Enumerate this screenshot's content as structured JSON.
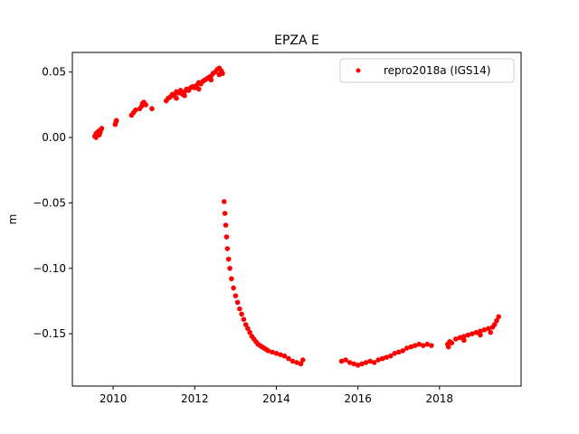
{
  "chart_data": {
    "type": "scatter",
    "title": "EPZA E",
    "xlabel": "",
    "ylabel": "m",
    "xlim": [
      2009.0,
      2020.0
    ],
    "ylim": [
      -0.19,
      0.065
    ],
    "xticks": [
      2010,
      2012,
      2014,
      2016,
      2018
    ],
    "xtick_labels": [
      "2010",
      "2012",
      "2014",
      "2016",
      "2018"
    ],
    "yticks": [
      -0.15,
      -0.1,
      -0.05,
      0.0,
      0.05
    ],
    "ytick_labels": [
      "−0.15",
      "−0.10",
      "−0.05",
      "0.00",
      "0.05"
    ],
    "grid": false,
    "legend": {
      "position": "top-right",
      "entries": [
        "repro2018a (IGS14)"
      ]
    },
    "series": [
      {
        "name": "repro2018a (IGS14)",
        "color": "#ff0000",
        "marker": "circle",
        "points": [
          [
            2009.55,
            0.001
          ],
          [
            2009.58,
            0.003
          ],
          [
            2009.6,
            0.002
          ],
          [
            2009.62,
            0.004
          ],
          [
            2009.65,
            0.005
          ],
          [
            2009.68,
            0.004
          ],
          [
            2009.7,
            0.006
          ],
          [
            2009.72,
            0.007
          ],
          [
            2009.58,
            0.0
          ],
          [
            2009.66,
            0.002
          ],
          [
            2010.05,
            0.01
          ],
          [
            2010.07,
            0.012
          ],
          [
            2010.08,
            0.013
          ],
          [
            2010.45,
            0.017
          ],
          [
            2010.5,
            0.019
          ],
          [
            2010.55,
            0.021
          ],
          [
            2010.65,
            0.022
          ],
          [
            2010.7,
            0.024
          ],
          [
            2010.72,
            0.026
          ],
          [
            2010.75,
            0.027
          ],
          [
            2010.8,
            0.025
          ],
          [
            2010.95,
            0.022
          ],
          [
            2011.3,
            0.028
          ],
          [
            2011.35,
            0.03
          ],
          [
            2011.4,
            0.031
          ],
          [
            2011.45,
            0.033
          ],
          [
            2011.5,
            0.032
          ],
          [
            2011.55,
            0.035
          ],
          [
            2011.6,
            0.034
          ],
          [
            2011.65,
            0.036
          ],
          [
            2011.7,
            0.033
          ],
          [
            2011.75,
            0.035
          ],
          [
            2011.8,
            0.037
          ],
          [
            2011.85,
            0.036
          ],
          [
            2011.9,
            0.038
          ],
          [
            2011.95,
            0.039
          ],
          [
            2012.0,
            0.038
          ],
          [
            2012.05,
            0.04
          ],
          [
            2012.1,
            0.042
          ],
          [
            2012.15,
            0.041
          ],
          [
            2012.2,
            0.043
          ],
          [
            2012.25,
            0.044
          ],
          [
            2012.3,
            0.045
          ],
          [
            2012.35,
            0.046
          ],
          [
            2012.4,
            0.047
          ],
          [
            2012.45,
            0.049
          ],
          [
            2012.5,
            0.05
          ],
          [
            2012.55,
            0.052
          ],
          [
            2012.6,
            0.053
          ],
          [
            2012.65,
            0.051
          ],
          [
            2012.68,
            0.049
          ],
          [
            2011.55,
            0.03
          ],
          [
            2011.75,
            0.032
          ],
          [
            2012.1,
            0.037
          ],
          [
            2012.4,
            0.044
          ],
          [
            2012.6,
            0.048
          ],
          [
            2012.72,
            -0.049
          ],
          [
            2012.74,
            -0.058
          ],
          [
            2012.76,
            -0.067
          ],
          [
            2012.78,
            -0.076
          ],
          [
            2012.8,
            -0.085
          ],
          [
            2012.83,
            -0.093
          ],
          [
            2012.86,
            -0.1
          ],
          [
            2012.9,
            -0.108
          ],
          [
            2012.95,
            -0.115
          ],
          [
            2013.0,
            -0.121
          ],
          [
            2013.05,
            -0.126
          ],
          [
            2013.1,
            -0.131
          ],
          [
            2013.15,
            -0.135
          ],
          [
            2013.2,
            -0.139
          ],
          [
            2013.25,
            -0.143
          ],
          [
            2013.3,
            -0.146
          ],
          [
            2013.35,
            -0.149
          ],
          [
            2013.4,
            -0.152
          ],
          [
            2013.45,
            -0.154
          ],
          [
            2013.5,
            -0.156
          ],
          [
            2013.55,
            -0.158
          ],
          [
            2013.6,
            -0.159
          ],
          [
            2013.65,
            -0.16
          ],
          [
            2013.7,
            -0.161
          ],
          [
            2013.75,
            -0.162
          ],
          [
            2013.8,
            -0.163
          ],
          [
            2013.9,
            -0.164
          ],
          [
            2014.0,
            -0.165
          ],
          [
            2014.1,
            -0.166
          ],
          [
            2014.2,
            -0.167
          ],
          [
            2014.3,
            -0.169
          ],
          [
            2014.4,
            -0.171
          ],
          [
            2014.5,
            -0.172
          ],
          [
            2014.6,
            -0.173
          ],
          [
            2014.65,
            -0.17
          ],
          [
            2015.6,
            -0.171
          ],
          [
            2015.7,
            -0.17
          ],
          [
            2015.8,
            -0.172
          ],
          [
            2015.9,
            -0.173
          ],
          [
            2016.0,
            -0.174
          ],
          [
            2016.1,
            -0.173
          ],
          [
            2016.2,
            -0.172
          ],
          [
            2016.3,
            -0.171
          ],
          [
            2016.4,
            -0.172
          ],
          [
            2016.5,
            -0.17
          ],
          [
            2016.6,
            -0.169
          ],
          [
            2016.7,
            -0.168
          ],
          [
            2016.8,
            -0.167
          ],
          [
            2016.9,
            -0.165
          ],
          [
            2017.0,
            -0.164
          ],
          [
            2017.1,
            -0.163
          ],
          [
            2017.2,
            -0.161
          ],
          [
            2017.3,
            -0.16
          ],
          [
            2017.4,
            -0.159
          ],
          [
            2017.5,
            -0.158
          ],
          [
            2017.6,
            -0.159
          ],
          [
            2017.7,
            -0.158
          ],
          [
            2017.8,
            -0.159
          ],
          [
            2018.2,
            -0.158
          ],
          [
            2018.25,
            -0.156
          ],
          [
            2018.3,
            -0.157
          ],
          [
            2018.4,
            -0.154
          ],
          [
            2018.5,
            -0.153
          ],
          [
            2018.6,
            -0.152
          ],
          [
            2018.7,
            -0.151
          ],
          [
            2018.8,
            -0.15
          ],
          [
            2018.9,
            -0.149
          ],
          [
            2019.0,
            -0.148
          ],
          [
            2019.1,
            -0.147
          ],
          [
            2019.2,
            -0.146
          ],
          [
            2019.3,
            -0.145
          ],
          [
            2019.35,
            -0.143
          ],
          [
            2019.4,
            -0.14
          ],
          [
            2019.45,
            -0.137
          ],
          [
            2018.22,
            -0.16
          ],
          [
            2018.6,
            -0.155
          ],
          [
            2019.0,
            -0.151
          ],
          [
            2019.25,
            -0.149
          ]
        ]
      }
    ]
  }
}
